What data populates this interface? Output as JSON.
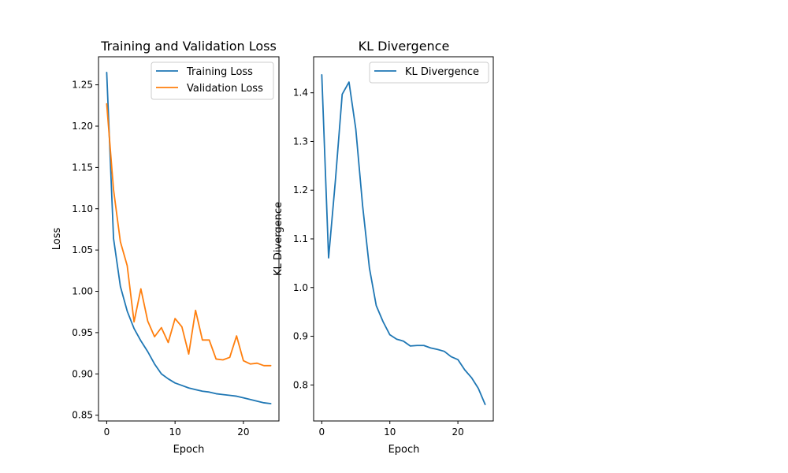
{
  "chart_data": [
    {
      "type": "line",
      "title": "Training and Validation Loss",
      "xlabel": "Epoch",
      "ylabel": "Loss",
      "xlim": [
        -1.2,
        25.2
      ],
      "ylim": [
        0.843,
        1.284
      ],
      "xticks": [
        0,
        10,
        20
      ],
      "yticks": [
        0.85,
        0.9,
        0.95,
        1.0,
        1.05,
        1.1,
        1.15,
        1.2,
        1.25
      ],
      "ytick_labels": [
        "0.85",
        "0.90",
        "0.95",
        "1.00",
        "1.05",
        "1.10",
        "1.15",
        "1.20",
        "1.25"
      ],
      "grid": false,
      "legend_position": "top-right",
      "x": [
        0,
        1,
        2,
        3,
        4,
        5,
        6,
        7,
        8,
        9,
        10,
        11,
        12,
        13,
        14,
        15,
        16,
        17,
        18,
        19,
        20,
        21,
        22,
        23,
        24
      ],
      "series": [
        {
          "name": "Training Loss",
          "color": "#1f77b4",
          "values": [
            1.265,
            1.064,
            1.006,
            0.976,
            0.955,
            0.94,
            0.927,
            0.912,
            0.9,
            0.894,
            0.889,
            0.886,
            0.883,
            0.881,
            0.879,
            0.878,
            0.876,
            0.875,
            0.874,
            0.873,
            0.871,
            0.869,
            0.867,
            0.865,
            0.864
          ]
        },
        {
          "name": "Validation Loss",
          "color": "#ff7f0e",
          "values": [
            1.227,
            1.123,
            1.06,
            1.031,
            0.963,
            1.003,
            0.964,
            0.945,
            0.956,
            0.938,
            0.967,
            0.957,
            0.924,
            0.977,
            0.941,
            0.941,
            0.918,
            0.917,
            0.92,
            0.946,
            0.916,
            0.912,
            0.913,
            0.91,
            0.91
          ]
        }
      ]
    },
    {
      "type": "line",
      "title": "KL Divergence",
      "xlabel": "Epoch",
      "ylabel": "KL Divergence",
      "xlim": [
        -1.2,
        25.2
      ],
      "ylim": [
        0.726,
        1.474
      ],
      "xticks": [
        0,
        10,
        20
      ],
      "yticks": [
        0.8,
        0.9,
        1.0,
        1.1,
        1.2,
        1.3,
        1.4
      ],
      "ytick_labels": [
        "0.8",
        "0.9",
        "1.0",
        "1.1",
        "1.2",
        "1.3",
        "1.4"
      ],
      "grid": false,
      "legend_position": "top-right",
      "x": [
        0,
        1,
        2,
        3,
        4,
        5,
        6,
        7,
        8,
        9,
        10,
        11,
        12,
        13,
        14,
        15,
        16,
        17,
        18,
        19,
        20,
        21,
        22,
        23,
        24
      ],
      "series": [
        {
          "name": "KL Divergence",
          "color": "#1f77b4",
          "values": [
            1.437,
            1.061,
            1.22,
            1.397,
            1.422,
            1.325,
            1.168,
            1.04,
            0.963,
            0.93,
            0.903,
            0.894,
            0.89,
            0.88,
            0.881,
            0.881,
            0.876,
            0.873,
            0.869,
            0.858,
            0.852,
            0.831,
            0.815,
            0.793,
            0.76
          ]
        }
      ]
    }
  ]
}
